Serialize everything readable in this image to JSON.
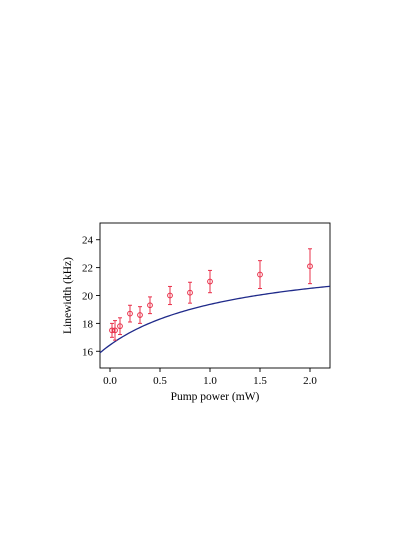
{
  "chart_data": {
    "type": "scatter",
    "title": "",
    "xlabel": "Pump power (mW)",
    "ylabel": "Linewidth (kHz)",
    "xlim": [
      -0.1,
      2.2
    ],
    "ylim": [
      14.8,
      25.2
    ],
    "x_ticks": [
      0.0,
      0.5,
      1.0,
      1.5,
      2.0
    ],
    "x_tick_labels": [
      "0.0",
      "0.5",
      "1.0",
      "1.5",
      "2.0"
    ],
    "y_ticks": [
      16,
      18,
      20,
      22,
      24
    ],
    "y_tick_labels": [
      "16",
      "18",
      "20",
      "22",
      "24"
    ],
    "grid": false,
    "legend": "none",
    "series": [
      {
        "kind": "points-with-error-bars",
        "color": "#e8304a",
        "marker": "open-circle",
        "x": [
          0.02,
          0.05,
          0.1,
          0.2,
          0.3,
          0.4,
          0.6,
          0.8,
          1.0,
          1.5,
          2.0
        ],
        "y": [
          17.5,
          17.5,
          17.8,
          18.7,
          18.6,
          19.3,
          20.0,
          20.2,
          21.0,
          21.5,
          22.1
        ],
        "error": [
          0.5,
          0.7,
          0.6,
          0.6,
          0.6,
          0.6,
          0.65,
          0.75,
          0.8,
          1.0,
          1.25
        ]
      },
      {
        "kind": "fit-line",
        "color": "#1f2a8a",
        "model": "saturation",
        "x_range": [
          -0.1,
          2.2
        ],
        "params": {
          "y0": 16.45,
          "a": 6.7,
          "b": 1.3
        }
      }
    ]
  }
}
